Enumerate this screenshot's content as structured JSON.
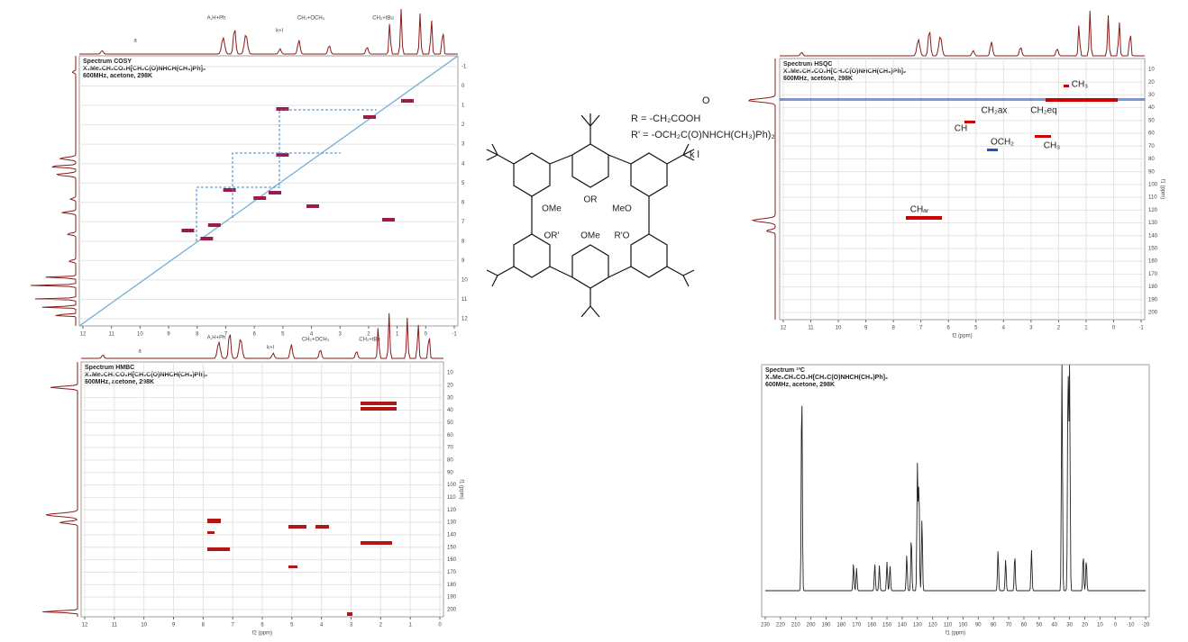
{
  "cosy": {
    "title": "Spectrum COSY",
    "compound": "X₄Me₂CH₂CO₂H[CH₂C(O)NHCH(CH₃)Ph]₂",
    "conditions": "600MHz, acetone, 298K",
    "xticks": [
      12,
      11,
      10,
      9,
      8,
      7,
      6,
      5,
      4,
      3,
      2,
      1,
      0,
      -1
    ],
    "yticks": [
      -1,
      0,
      1,
      2,
      3,
      4,
      5,
      6,
      7,
      8,
      9,
      10,
      11,
      12
    ],
    "labels": [
      "a",
      "A,H+Ph",
      "k+l",
      "CH₂+OCH₃",
      "CH₂+tBu"
    ]
  },
  "hsqc": {
    "title": "Spectrum HSQC",
    "compound": "X₄Me₂CH₂CO₂H[CH₂C(O)NHCH(CH₃)Ph]₂",
    "conditions": "600MHz, acetone, 298K",
    "xticks": [
      12,
      11,
      10,
      9,
      8,
      7,
      6,
      5,
      4,
      3,
      2,
      1,
      0,
      -1
    ],
    "yticks": [
      10,
      20,
      30,
      40,
      50,
      60,
      70,
      80,
      90,
      100,
      110,
      120,
      130,
      140,
      150,
      160,
      170,
      180,
      190,
      200
    ],
    "x_label": "f2 (ppm)",
    "y_label": "f1 (ppm)",
    "labels": [
      "CH₃",
      "CH₂ax",
      "CH₂eq",
      "CH",
      "OCH₂",
      "CH₃",
      "CHₐᵣ"
    ]
  },
  "hmbc": {
    "title": "Spectrum HMBC",
    "compound": "X₄Me₂CH₂CO₂H[CH₂C(O)NHCH(CH₃)Ph]₂",
    "conditions": "600MHz, acetone, 298K",
    "xticks": [
      12,
      11,
      10,
      9,
      8,
      7,
      6,
      5,
      4,
      3,
      2,
      1,
      0
    ],
    "yticks": [
      10,
      20,
      30,
      40,
      50,
      60,
      70,
      80,
      90,
      100,
      110,
      120,
      130,
      140,
      150,
      160,
      170,
      180,
      190,
      200
    ],
    "x_label": "f2 (ppm)",
    "y_label": "f1 (ppm)",
    "labels": [
      "a",
      "A,H+Ph",
      "k+l",
      "CH₂+OCH₃",
      "CH₂+tBu"
    ]
  },
  "carbon": {
    "title": "Spectrum ¹³C",
    "compound": "X₄Me₂CH₂CO₂H[CH₂C(O)NHCH(CH₃)Ph]₂",
    "conditions": "600MHz, acetone, 298K",
    "xticks": [
      230,
      220,
      210,
      200,
      190,
      180,
      170,
      160,
      150,
      140,
      130,
      120,
      110,
      100,
      90,
      80,
      70,
      60,
      50,
      40,
      30,
      20,
      10,
      0,
      -10,
      -20
    ],
    "x_label": "f1 (ppm)"
  },
  "structure": {
    "substituents": [
      "OR",
      "OMe",
      "MeO",
      "OR'",
      "R'O",
      "OMe"
    ],
    "r": "R = -CH₂COOH",
    "r_prime": "R' = -OCH₂C(O)NHCH(CH₃)Ph)₂",
    "kl": "k   l",
    "o": "O"
  }
}
